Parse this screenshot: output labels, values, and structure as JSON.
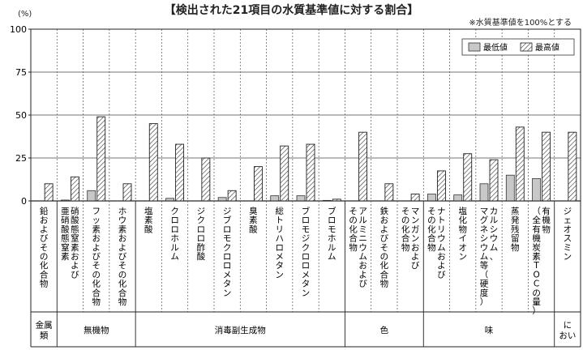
{
  "chart_data": {
    "type": "bar",
    "title": "【検出された21項目の水質基準値に対する割合】",
    "note": "※水質基準値を100%とする",
    "ylabel": "(%)",
    "ylim": [
      0,
      100
    ],
    "yticks": [
      "0",
      "25",
      "50",
      "75",
      "100"
    ],
    "grid": true,
    "legend_position": "top-right",
    "categories": [
      "鉛およびその化合物",
      "硝酸態窒素および亜硝酸態窒素",
      "フッ素およびその化合物",
      "ホウ素およびその化合物",
      "塩素酸",
      "クロロホルム",
      "ジクロロ酢酸",
      "ジブロモクロロメタン",
      "臭素酸",
      "総トリハロメタン",
      "ブロモジクロロメタン",
      "ブロモホルム",
      "アルミニウムおよびその化合物",
      "鉄およびその化合物",
      "マンガンおよびその化合物",
      "ナトリウムおよびその化合物",
      "塩化物イオン",
      "カルシウム、マグネシウム等（硬度）",
      "蒸発残留物",
      "有機物（全有機炭素TOCの量）",
      "ジェオスミン"
    ],
    "category_lines": [
      [
        "鉛およびその化合物"
      ],
      [
        "硝酸態窒素および",
        "亜硝酸態窒素"
      ],
      [
        "フッ素およびその化合物"
      ],
      [
        "ホウ素およびその化合物"
      ],
      [
        "塩素酸"
      ],
      [
        "クロロホルム"
      ],
      [
        "ジクロロ酢酸"
      ],
      [
        "ジブロモクロロメタン"
      ],
      [
        "臭素酸"
      ],
      [
        "総トリハロメタン"
      ],
      [
        "ブロモジクロロメタン"
      ],
      [
        "ブロモホルム"
      ],
      [
        "アルミニウムおよび",
        "その化合物"
      ],
      [
        "鉄およびその化合物"
      ],
      [
        "マンガンおよび",
        "その化合物"
      ],
      [
        "ナトリウムおよび",
        "その化合物"
      ],
      [
        "塩化物イオン"
      ],
      [
        "カルシウム、",
        "マグネシウム等（硬度）"
      ],
      [
        "蒸発残留物"
      ],
      [
        "有機物",
        "（全有機炭素TOCの量）"
      ],
      [
        "ジェオスミン"
      ]
    ],
    "series": [
      {
        "name": "最低値",
        "values": [
          0,
          0.5,
          6,
          0,
          0,
          1.5,
          0,
          2,
          0,
          3,
          3,
          0.3,
          0,
          0,
          0,
          4,
          3.5,
          10,
          15,
          13,
          0
        ]
      },
      {
        "name": "最高値",
        "values": [
          10,
          14,
          49,
          10,
          45,
          33,
          25,
          6,
          20,
          32,
          33,
          1,
          40,
          10,
          4,
          17.5,
          27.5,
          24,
          43,
          40,
          40
        ]
      }
    ],
    "groups": [
      {
        "label": "金属類",
        "lines": [
          "金属",
          "類"
        ],
        "start": 0,
        "end": 0
      },
      {
        "label": "無機物",
        "lines": [
          "無機物"
        ],
        "start": 1,
        "end": 3
      },
      {
        "label": "消毒副生成物",
        "lines": [
          "消毒副生成物"
        ],
        "start": 4,
        "end": 11
      },
      {
        "label": "色",
        "lines": [
          "色"
        ],
        "start": 12,
        "end": 14
      },
      {
        "label": "味",
        "lines": [
          "味"
        ],
        "start": 15,
        "end": 19
      },
      {
        "label": "におい",
        "lines": [
          "に",
          "おい"
        ],
        "start": 20,
        "end": 20
      }
    ],
    "colors": {
      "min": "#c8c8c8",
      "max_hatch": "#333333",
      "grid": "#444444"
    }
  }
}
